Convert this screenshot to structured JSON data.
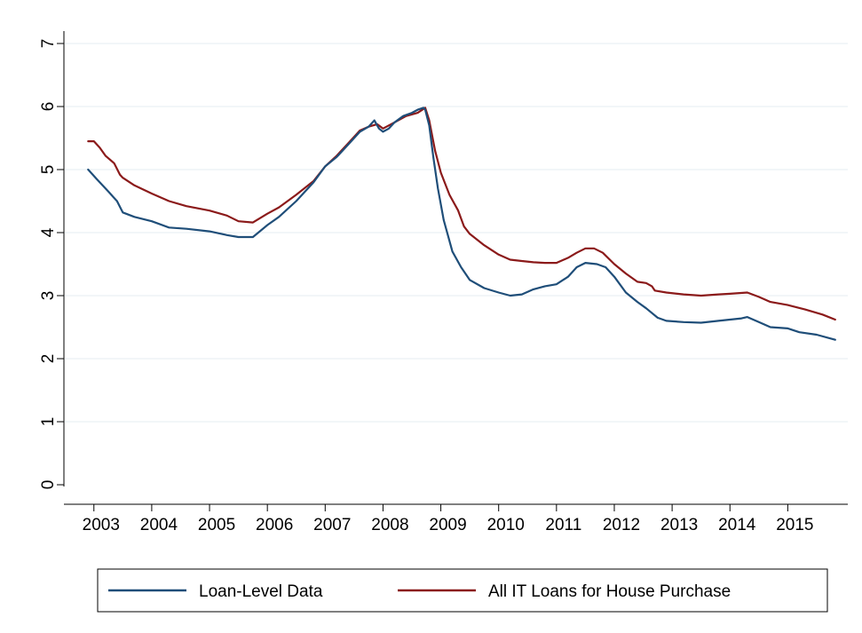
{
  "chart_data": {
    "type": "line",
    "title": "",
    "xlabel": "",
    "ylabel": "",
    "xlim": [
      2002.85,
      2015.9
    ],
    "ylim": [
      0,
      7
    ],
    "yticks": [
      "0",
      "1",
      "2",
      "3",
      "4",
      "5",
      "6",
      "7"
    ],
    "xticks": [
      "2003",
      "2004",
      "2005",
      "2006",
      "2007",
      "2008",
      "2009",
      "2010",
      "2011",
      "2012",
      "2013",
      "2014",
      "2015"
    ],
    "grid": true,
    "legend_position": "bottom",
    "series": [
      {
        "name": "Loan-Level Data",
        "color": "#1f4e79",
        "x": [
          2002.9,
          2003.05,
          2003.25,
          2003.4,
          2003.5,
          2003.7,
          2004.0,
          2004.3,
          2004.6,
          2005.0,
          2005.3,
          2005.5,
          2005.75,
          2006.0,
          2006.2,
          2006.5,
          2006.8,
          2007.0,
          2007.2,
          2007.4,
          2007.6,
          2007.75,
          2007.85,
          2007.93,
          2008.0,
          2008.1,
          2008.2,
          2008.35,
          2008.5,
          2008.6,
          2008.7,
          2008.73,
          2008.8,
          2008.87,
          2008.95,
          2009.05,
          2009.2,
          2009.35,
          2009.5,
          2009.75,
          2010.0,
          2010.2,
          2010.4,
          2010.6,
          2010.8,
          2011.0,
          2011.2,
          2011.35,
          2011.5,
          2011.7,
          2011.85,
          2012.0,
          2012.2,
          2012.4,
          2012.55,
          2012.75,
          2012.9,
          2013.2,
          2013.5,
          2013.8,
          2014.0,
          2014.2,
          2014.3,
          2014.5,
          2014.7,
          2015.0,
          2015.2,
          2015.5,
          2015.82
        ],
        "values": [
          5.0,
          4.85,
          4.65,
          4.5,
          4.32,
          4.25,
          4.18,
          4.08,
          4.06,
          4.02,
          3.96,
          3.93,
          3.93,
          4.12,
          4.25,
          4.5,
          4.8,
          5.05,
          5.2,
          5.4,
          5.6,
          5.68,
          5.78,
          5.65,
          5.6,
          5.65,
          5.75,
          5.85,
          5.9,
          5.95,
          5.98,
          5.95,
          5.7,
          5.2,
          4.7,
          4.2,
          3.7,
          3.45,
          3.25,
          3.12,
          3.05,
          3.0,
          3.02,
          3.1,
          3.15,
          3.18,
          3.3,
          3.45,
          3.52,
          3.5,
          3.45,
          3.3,
          3.05,
          2.9,
          2.8,
          2.65,
          2.6,
          2.58,
          2.57,
          2.6,
          2.62,
          2.64,
          2.66,
          2.58,
          2.5,
          2.48,
          2.42,
          2.38,
          2.3
        ]
      },
      {
        "name": "All IT Loans for House Purchase",
        "color": "#8b1a1a",
        "x": [
          2002.9,
          2003.0,
          2003.1,
          2003.2,
          2003.35,
          2003.45,
          2003.5,
          2003.7,
          2004.0,
          2004.3,
          2004.6,
          2005.0,
          2005.3,
          2005.5,
          2005.75,
          2006.0,
          2006.2,
          2006.5,
          2006.8,
          2007.0,
          2007.2,
          2007.4,
          2007.6,
          2007.75,
          2007.9,
          2008.0,
          2008.2,
          2008.4,
          2008.6,
          2008.73,
          2008.8,
          2008.9,
          2009.0,
          2009.15,
          2009.3,
          2009.4,
          2009.5,
          2009.75,
          2010.0,
          2010.2,
          2010.4,
          2010.6,
          2010.8,
          2011.0,
          2011.2,
          2011.35,
          2011.5,
          2011.65,
          2011.8,
          2012.0,
          2012.2,
          2012.4,
          2012.55,
          2012.65,
          2012.7,
          2012.9,
          2013.2,
          2013.5,
          2013.8,
          2014.0,
          2014.3,
          2014.5,
          2014.7,
          2015.0,
          2015.3,
          2015.6,
          2015.82
        ],
        "values": [
          5.45,
          5.45,
          5.35,
          5.22,
          5.1,
          4.92,
          4.87,
          4.75,
          4.62,
          4.5,
          4.42,
          4.35,
          4.27,
          4.18,
          4.16,
          4.3,
          4.4,
          4.6,
          4.82,
          5.05,
          5.22,
          5.42,
          5.62,
          5.68,
          5.72,
          5.65,
          5.75,
          5.85,
          5.9,
          5.98,
          5.78,
          5.3,
          4.95,
          4.6,
          4.35,
          4.1,
          3.98,
          3.8,
          3.65,
          3.57,
          3.55,
          3.53,
          3.52,
          3.52,
          3.6,
          3.68,
          3.75,
          3.75,
          3.68,
          3.5,
          3.35,
          3.22,
          3.2,
          3.15,
          3.08,
          3.05,
          3.02,
          3.0,
          3.02,
          3.03,
          3.05,
          2.98,
          2.9,
          2.85,
          2.78,
          2.7,
          2.62
        ]
      }
    ]
  }
}
